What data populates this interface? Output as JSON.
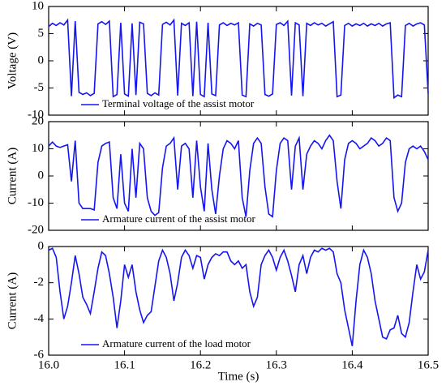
{
  "chart_data": [
    {
      "type": "line",
      "ylabel": "Voltage (V)",
      "xlim": [
        16,
        16.5
      ],
      "ylim": [
        -10,
        10
      ],
      "yticks": [
        -10,
        -5,
        0,
        5,
        10
      ],
      "legend": "lower left",
      "x": [
        16,
        16.005,
        16.01,
        16.015,
        16.02,
        16.025,
        16.03,
        16.035,
        16.04,
        16.045,
        16.05,
        16.055,
        16.06,
        16.065,
        16.07,
        16.075,
        16.08,
        16.085,
        16.09,
        16.095,
        16.1,
        16.105,
        16.11,
        16.115,
        16.12,
        16.125,
        16.13,
        16.135,
        16.14,
        16.145,
        16.15,
        16.155,
        16.16,
        16.165,
        16.17,
        16.175,
        16.18,
        16.185,
        16.19,
        16.195,
        16.2,
        16.205,
        16.21,
        16.215,
        16.22,
        16.225,
        16.23,
        16.235,
        16.24,
        16.245,
        16.25,
        16.255,
        16.26,
        16.265,
        16.27,
        16.275,
        16.28,
        16.285,
        16.29,
        16.295,
        16.3,
        16.305,
        16.31,
        16.315,
        16.32,
        16.325,
        16.33,
        16.335,
        16.34,
        16.345,
        16.35,
        16.355,
        16.36,
        16.365,
        16.37,
        16.375,
        16.38,
        16.385,
        16.39,
        16.395,
        16.4,
        16.405,
        16.41,
        16.415,
        16.42,
        16.425,
        16.43,
        16.435,
        16.44,
        16.445,
        16.45,
        16.455,
        16.46,
        16.465,
        16.47,
        16.475,
        16.48,
        16.485,
        16.49,
        16.495,
        16.5
      ],
      "series": [
        {
          "name": "Terminal voltage of the assist motor",
          "color": "#1515f0",
          "values": [
            6.3,
            6.9,
            6.5,
            7.0,
            6.6,
            7.5,
            -6.5,
            7.3,
            -5.8,
            -6.2,
            -5.9,
            -6.4,
            -6.0,
            6.8,
            7.2,
            6.7,
            7.3,
            -6.6,
            -6.2,
            7.0,
            -6.1,
            -6.5,
            6.9,
            -6.3,
            7.1,
            6.8,
            -6.0,
            -6.4,
            -5.9,
            -6.3,
            6.7,
            7.1,
            6.6,
            7.5,
            -6.4,
            6.9,
            6.5,
            7.0,
            -6.5,
            7.2,
            -6.2,
            -6.6,
            7.0,
            -6.1,
            -6.4,
            6.6,
            7.0,
            6.5,
            6.9,
            6.6,
            7.0,
            -6.3,
            -6.6,
            6.8,
            6.4,
            6.9,
            6.6,
            -6.2,
            -6.5,
            -6.1,
            6.7,
            7.0,
            6.5,
            7.3,
            -6.4,
            7.0,
            6.6,
            -6.5,
            6.9,
            6.5,
            7.0,
            6.6,
            6.9,
            6.4,
            6.8,
            7.2,
            -6.6,
            -6.3,
            6.5,
            6.9,
            6.4,
            6.8,
            6.5,
            6.9,
            6.4,
            6.8,
            6.5,
            6.9,
            6.4,
            6.8,
            7.0,
            -6.8,
            -6.3,
            -6.6,
            6.5,
            6.9,
            6.4,
            6.8,
            7.0,
            6.6,
            -6.0
          ]
        }
      ]
    },
    {
      "type": "line",
      "ylabel": "Current (A)",
      "xlim": [
        16,
        16.5
      ],
      "ylim": [
        -20,
        20
      ],
      "yticks": [
        -20,
        -10,
        0,
        10,
        20
      ],
      "legend": "lower left",
      "x": [
        16,
        16.005,
        16.01,
        16.015,
        16.02,
        16.025,
        16.03,
        16.035,
        16.04,
        16.045,
        16.05,
        16.055,
        16.06,
        16.065,
        16.07,
        16.075,
        16.08,
        16.085,
        16.09,
        16.095,
        16.1,
        16.105,
        16.11,
        16.115,
        16.12,
        16.125,
        16.13,
        16.135,
        16.14,
        16.145,
        16.15,
        16.155,
        16.16,
        16.165,
        16.17,
        16.175,
        16.18,
        16.185,
        16.19,
        16.195,
        16.2,
        16.205,
        16.21,
        16.215,
        16.22,
        16.225,
        16.23,
        16.235,
        16.24,
        16.245,
        16.25,
        16.255,
        16.26,
        16.265,
        16.27,
        16.275,
        16.28,
        16.285,
        16.29,
        16.295,
        16.3,
        16.305,
        16.31,
        16.315,
        16.32,
        16.325,
        16.33,
        16.335,
        16.34,
        16.345,
        16.35,
        16.355,
        16.36,
        16.365,
        16.37,
        16.375,
        16.38,
        16.385,
        16.39,
        16.395,
        16.4,
        16.405,
        16.41,
        16.415,
        16.42,
        16.425,
        16.43,
        16.435,
        16.44,
        16.445,
        16.45,
        16.455,
        16.46,
        16.465,
        16.47,
        16.475,
        16.48,
        16.485,
        16.49,
        16.495,
        16.5
      ],
      "series": [
        {
          "name": "Armature current of the assist motor",
          "color": "#1515f0",
          "values": [
            11,
            12.5,
            11,
            10.5,
            11,
            11.5,
            -2,
            13,
            -10,
            -12,
            -12,
            -12,
            -12.5,
            5,
            11,
            12,
            12.5,
            -8,
            -12,
            8,
            -10,
            -13,
            10,
            -8,
            12,
            10,
            -8,
            -13,
            -14.5,
            -13.5,
            3,
            11,
            12,
            14,
            -5,
            11,
            12,
            10,
            -8,
            13,
            -4,
            -13,
            12,
            -5,
            -14,
            0,
            10,
            13,
            12,
            10,
            13,
            -8,
            -15,
            2,
            12,
            14,
            12,
            -4,
            -14,
            -15,
            2,
            12,
            14,
            13,
            -5,
            11,
            14,
            -5,
            8,
            11,
            13,
            12,
            10,
            13,
            15,
            13,
            -2,
            -12,
            6,
            12,
            13,
            12,
            10,
            11,
            12,
            14,
            13,
            11,
            12,
            14,
            13,
            -8,
            -13,
            -10,
            5,
            10,
            11,
            10,
            11,
            9,
            6
          ]
        }
      ]
    },
    {
      "type": "line",
      "ylabel": "Current (A)",
      "xlabel": "Time (s)",
      "xlim": [
        16,
        16.5
      ],
      "ylim": [
        -6,
        0
      ],
      "yticks": [
        -6,
        -4,
        -2,
        0
      ],
      "legend": "lower left",
      "xticks": [
        {
          "value": 16,
          "label": "16.0"
        },
        16.1,
        16.2,
        16.3,
        16.4,
        16.5
      ],
      "x": [
        16,
        16.005,
        16.01,
        16.015,
        16.02,
        16.025,
        16.03,
        16.035,
        16.04,
        16.045,
        16.05,
        16.055,
        16.06,
        16.065,
        16.07,
        16.075,
        16.08,
        16.085,
        16.09,
        16.095,
        16.1,
        16.105,
        16.11,
        16.115,
        16.12,
        16.125,
        16.13,
        16.135,
        16.14,
        16.145,
        16.15,
        16.155,
        16.16,
        16.165,
        16.17,
        16.175,
        16.18,
        16.185,
        16.19,
        16.195,
        16.2,
        16.205,
        16.21,
        16.215,
        16.22,
        16.225,
        16.23,
        16.235,
        16.24,
        16.245,
        16.25,
        16.255,
        16.26,
        16.265,
        16.27,
        16.275,
        16.28,
        16.285,
        16.29,
        16.295,
        16.3,
        16.305,
        16.31,
        16.315,
        16.32,
        16.325,
        16.33,
        16.335,
        16.34,
        16.345,
        16.35,
        16.355,
        16.36,
        16.365,
        16.37,
        16.375,
        16.38,
        16.385,
        16.39,
        16.395,
        16.4,
        16.405,
        16.41,
        16.415,
        16.42,
        16.425,
        16.43,
        16.435,
        16.44,
        16.445,
        16.45,
        16.455,
        16.46,
        16.465,
        16.47,
        16.475,
        16.48,
        16.485,
        16.49,
        16.495,
        16.5
      ],
      "series": [
        {
          "name": "Armature current of the load motor",
          "color": "#1515f0",
          "values": [
            -0.2,
            -0.1,
            -0.6,
            -2.5,
            -4,
            -3.3,
            -2,
            -0.5,
            -1.5,
            -2.8,
            -3.2,
            -3.7,
            -2.5,
            -1.2,
            -0.3,
            -0.5,
            -1.5,
            -2.8,
            -4.5,
            -3,
            -1,
            -1.7,
            -1,
            -2.5,
            -3.5,
            -4.2,
            -3.8,
            -3.6,
            -2.2,
            -0.8,
            -0.2,
            -0.6,
            -1.5,
            -3,
            -2,
            -0.6,
            -0.2,
            -0.5,
            -1.2,
            -0.5,
            -0.6,
            -1.8,
            -1,
            -0.6,
            -0.4,
            -0.5,
            -0.3,
            -0.3,
            -0.8,
            -1.0,
            -0.8,
            -1.2,
            -1.0,
            -2.5,
            -3.3,
            -2.8,
            -1.0,
            -0.5,
            -0.2,
            -0.6,
            -1.3,
            -0.6,
            -0.2,
            -0.8,
            -1.6,
            -2.5,
            -1.0,
            -0.5,
            -1.5,
            -0.6,
            -0.2,
            -0.3,
            -0.1,
            -0.2,
            -0.1,
            -0.3,
            -1.5,
            -2.0,
            -3.5,
            -4.5,
            -5.5,
            -3.0,
            -1.0,
            -0.2,
            -0.6,
            -1.5,
            -3.0,
            -4.0,
            -5.0,
            -5.1,
            -4.6,
            -4.5,
            -3.8,
            -4.8,
            -5.0,
            -4.2,
            -2.5,
            -1.0,
            -1.8,
            -1.4,
            -0.2
          ]
        }
      ]
    }
  ]
}
